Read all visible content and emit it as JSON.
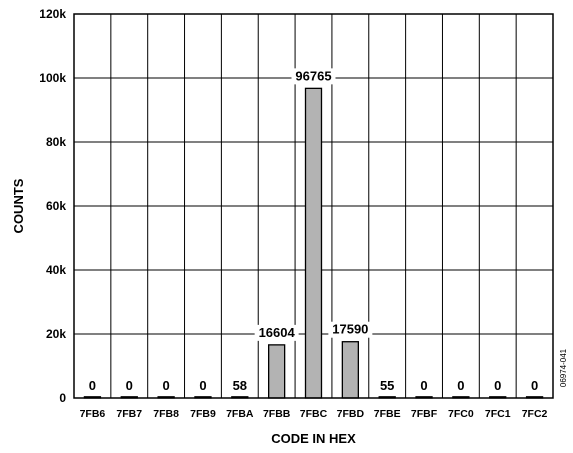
{
  "chart_data": {
    "type": "bar",
    "categories": [
      "7FB6",
      "7FB7",
      "7FB8",
      "7FB9",
      "7FBA",
      "7FBB",
      "7FBC",
      "7FBD",
      "7FBE",
      "7FBF",
      "7FC0",
      "7FC1",
      "7FC2"
    ],
    "values": [
      0,
      0,
      0,
      0,
      58,
      16604,
      96765,
      17590,
      55,
      0,
      0,
      0,
      0
    ],
    "data_labels": [
      "0",
      "0",
      "0",
      "0",
      "58",
      "16604",
      "96765",
      "17590",
      "55",
      "0",
      "0",
      "0",
      "0"
    ],
    "xlabel": "CODE IN HEX",
    "ylabel": "COUNTS",
    "ylim": [
      0,
      120000
    ],
    "yticks": [
      0,
      20000,
      40000,
      60000,
      80000,
      100000,
      120000
    ],
    "ytick_labels": [
      "0",
      "20k",
      "40k",
      "60k",
      "80k",
      "100k",
      "120k"
    ],
    "grid": true,
    "bar_color": "#b3b3b3",
    "figure_id": "06974-041"
  }
}
